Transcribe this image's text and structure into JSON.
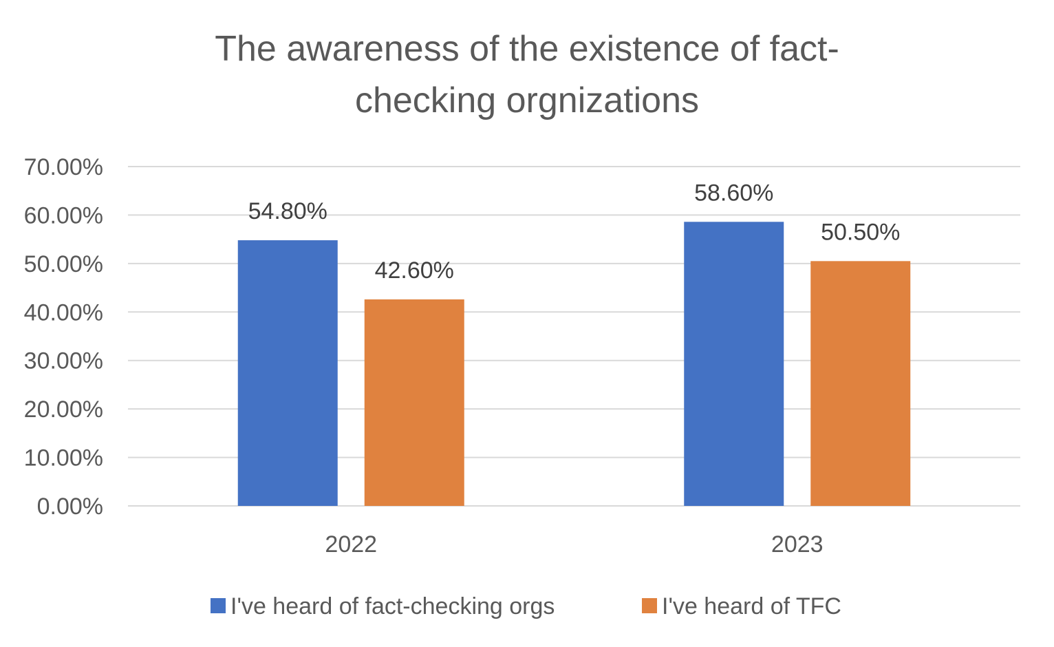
{
  "chart_data": {
    "type": "bar",
    "title_lines": [
      "The awareness of the existence of fact-",
      "checking orgnizations"
    ],
    "categories": [
      "2022",
      "2023"
    ],
    "series": [
      {
        "name": "I've heard of fact-checking orgs",
        "values": [
          54.8,
          58.6
        ],
        "labels": [
          "54.80%",
          "58.60%"
        ],
        "color": "#4472c4"
      },
      {
        "name": "I've heard of TFC",
        "values": [
          42.6,
          50.5
        ],
        "labels": [
          "42.60%",
          "50.50%"
        ],
        "color": "#e0823f"
      }
    ],
    "yticks": [
      {
        "value": 0,
        "label": "0.00%"
      },
      {
        "value": 10,
        "label": "10.00%"
      },
      {
        "value": 20,
        "label": "20.00%"
      },
      {
        "value": 30,
        "label": "30.00%"
      },
      {
        "value": 40,
        "label": "40.00%"
      },
      {
        "value": 50,
        "label": "50.00%"
      },
      {
        "value": 60,
        "label": "60.00%"
      },
      {
        "value": 70,
        "label": "70.00%"
      }
    ],
    "ylim": [
      0,
      70
    ],
    "grid": true,
    "legend_position": "bottom"
  }
}
